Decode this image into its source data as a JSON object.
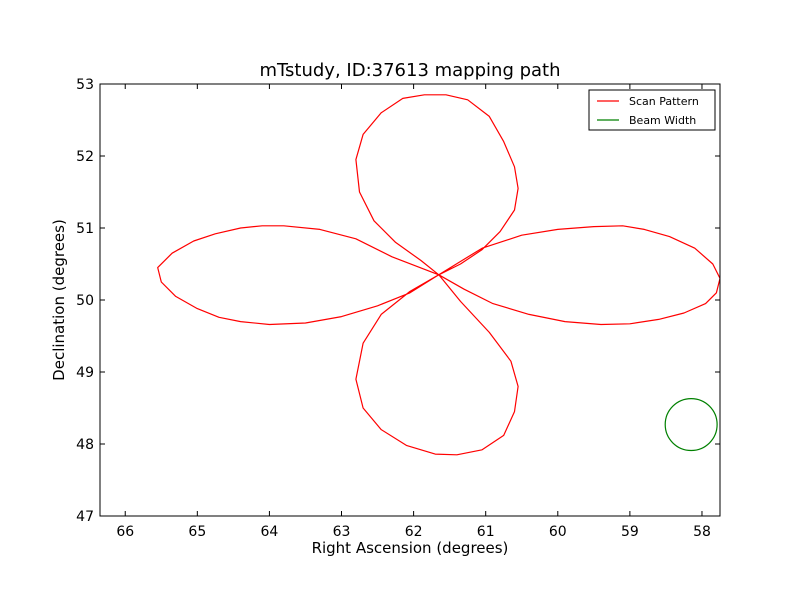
{
  "chart_data": {
    "type": "line",
    "title": "mTstudy, ID:37613 mapping path",
    "xlabel": "Right Ascension (degrees)",
    "ylabel": "Declination (degrees)",
    "xlim": [
      66.35,
      57.75
    ],
    "ylim": [
      47,
      53
    ],
    "x_inverted": true,
    "xticks": [
      66,
      65,
      64,
      63,
      62,
      61,
      60,
      59,
      58
    ],
    "yticks": [
      47,
      48,
      49,
      50,
      51,
      52,
      53
    ],
    "grid": false,
    "legend_position": "upper right",
    "series": [
      {
        "name": "Scan Pattern",
        "color": "#ff0000",
        "x": [
          61.65,
          62.3,
          62.8,
          63.3,
          63.8,
          64.1,
          64.4,
          64.75,
          65.05,
          65.35,
          65.55,
          65.5,
          65.3,
          65.0,
          64.7,
          64.4,
          64.0,
          63.5,
          63.0,
          62.5,
          62.05,
          61.65,
          61.05,
          60.5,
          60.0,
          59.5,
          59.1,
          58.8,
          58.45,
          58.1,
          57.85,
          57.75,
          57.8,
          57.95,
          58.25,
          58.6,
          59.0,
          59.4,
          59.9,
          60.4,
          60.9,
          61.3,
          61.65,
          61.9,
          62.25,
          62.55,
          62.75,
          62.8,
          62.7,
          62.45,
          62.15,
          61.85,
          61.55,
          61.25,
          60.95,
          60.75,
          60.6,
          60.55,
          60.6,
          60.8,
          61.05,
          61.35,
          61.65,
          62.05,
          62.45,
          62.7,
          62.8,
          62.7,
          62.45,
          62.1,
          61.7,
          61.4,
          61.05,
          60.75,
          60.6,
          60.55,
          60.65,
          60.95,
          61.35,
          61.65
        ],
        "y": [
          50.35,
          50.6,
          50.85,
          50.98,
          51.03,
          51.03,
          51.0,
          50.92,
          50.82,
          50.65,
          50.45,
          50.25,
          50.05,
          49.88,
          49.76,
          49.7,
          49.66,
          49.68,
          49.77,
          49.92,
          50.1,
          50.35,
          50.72,
          50.9,
          50.98,
          51.02,
          51.03,
          50.98,
          50.88,
          50.72,
          50.5,
          50.3,
          50.1,
          49.95,
          49.82,
          49.73,
          49.67,
          49.66,
          49.7,
          49.8,
          49.95,
          50.15,
          50.35,
          50.55,
          50.8,
          51.1,
          51.5,
          51.95,
          52.3,
          52.6,
          52.8,
          52.85,
          52.85,
          52.78,
          52.55,
          52.2,
          51.85,
          51.55,
          51.25,
          50.95,
          50.7,
          50.5,
          50.35,
          50.12,
          49.8,
          49.4,
          48.9,
          48.5,
          48.2,
          47.98,
          47.86,
          47.85,
          47.92,
          48.12,
          48.45,
          48.8,
          49.15,
          49.55,
          49.98,
          50.35
        ]
      },
      {
        "name": "Beam Width",
        "color": "#008000",
        "shape": "circle",
        "center": [
          58.15,
          48.27
        ],
        "radius": 0.36
      }
    ]
  }
}
